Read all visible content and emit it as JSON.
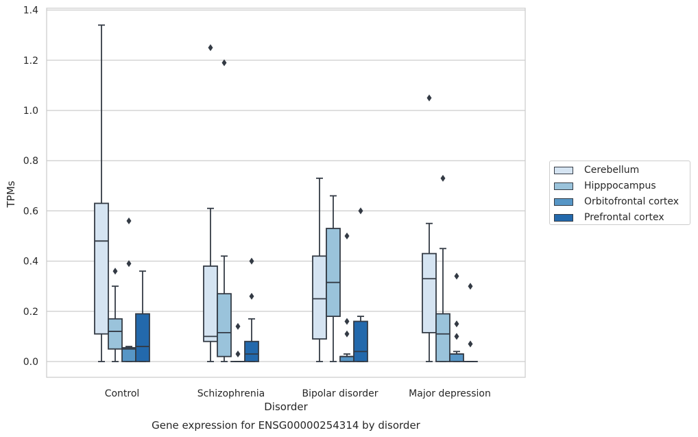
{
  "chart_data": {
    "type": "boxplot",
    "title": "Gene expression for ENSG00000254314 by disorder",
    "xlabel": "Disorder",
    "ylabel": "TPMs",
    "ylim": [
      -0.06,
      1.41
    ],
    "yticks": [
      "0.0",
      "0.2",
      "0.4",
      "0.6",
      "0.8",
      "1.0",
      "1.2",
      "1.4"
    ],
    "ytick_values": [
      0,
      0.2,
      0.4,
      0.6,
      0.8,
      1.0,
      1.2,
      1.4
    ],
    "grid": "horizontal",
    "legend_position": "right",
    "categories": [
      "Control",
      "Schizophrenia",
      "Bipolar disorder",
      "Major depression"
    ],
    "series": [
      {
        "name": "Cerebellum",
        "color": "#d5e4f2",
        "boxes": [
          {
            "whislo": 0,
            "q1": 0.11,
            "med": 0.48,
            "q3": 0.63,
            "whishi": 1.34,
            "fliers": []
          },
          {
            "whislo": 0,
            "q1": 0.08,
            "med": 0.1,
            "q3": 0.38,
            "whishi": 0.61,
            "fliers": [
              1.25
            ]
          },
          {
            "whislo": 0,
            "q1": 0.09,
            "med": 0.25,
            "q3": 0.42,
            "whishi": 0.73,
            "fliers": []
          },
          {
            "whislo": 0,
            "q1": 0.115,
            "med": 0.33,
            "q3": 0.43,
            "whishi": 0.55,
            "fliers": [
              1.05
            ]
          }
        ]
      },
      {
        "name": "Hipppocampus",
        "color": "#9ac3db",
        "boxes": [
          {
            "whislo": 0,
            "q1": 0.05,
            "med": 0.12,
            "q3": 0.17,
            "whishi": 0.3,
            "fliers": [
              0.36
            ]
          },
          {
            "whislo": 0,
            "q1": 0.02,
            "med": 0.115,
            "q3": 0.27,
            "whishi": 0.42,
            "fliers": [
              1.19
            ]
          },
          {
            "whislo": 0,
            "q1": 0.18,
            "med": 0.315,
            "q3": 0.53,
            "whishi": 0.66,
            "fliers": []
          },
          {
            "whislo": 0,
            "q1": 0,
            "med": 0.11,
            "q3": 0.19,
            "whishi": 0.45,
            "fliers": [
              0.73
            ]
          }
        ]
      },
      {
        "name": "Orbitofrontal cortex",
        "color": "#5796c6",
        "boxes": [
          {
            "whislo": 0,
            "q1": 0,
            "med": 0.05,
            "q3": 0.055,
            "whishi": 0.06,
            "fliers": [
              0.39,
              0.56
            ]
          },
          {
            "whislo": 0,
            "q1": 0,
            "med": 0,
            "q3": 0,
            "whishi": 0,
            "fliers": [
              0.03,
              0.14
            ]
          },
          {
            "whislo": 0,
            "q1": 0,
            "med": 0.02,
            "q3": 0.02,
            "whishi": 0.03,
            "fliers": [
              0.11,
              0.16,
              0.5
            ]
          },
          {
            "whislo": 0,
            "q1": 0,
            "med": 0.03,
            "q3": 0.03,
            "whishi": 0.04,
            "fliers": [
              0.1,
              0.15,
              0.34
            ]
          }
        ]
      },
      {
        "name": "Prefrontal cortex",
        "color": "#2369ac",
        "boxes": [
          {
            "whislo": 0,
            "q1": 0,
            "med": 0.06,
            "q3": 0.19,
            "whishi": 0.36,
            "fliers": []
          },
          {
            "whislo": 0,
            "q1": 0,
            "med": 0.03,
            "q3": 0.08,
            "whishi": 0.17,
            "fliers": [
              0.26,
              0.4
            ]
          },
          {
            "whislo": 0,
            "q1": 0,
            "med": 0.04,
            "q3": 0.16,
            "whishi": 0.18,
            "fliers": [
              0.6
            ]
          },
          {
            "whislo": 0,
            "q1": 0,
            "med": 0,
            "q3": 0,
            "whishi": 0,
            "fliers": [
              0.07,
              0.3
            ]
          }
        ]
      }
    ]
  }
}
